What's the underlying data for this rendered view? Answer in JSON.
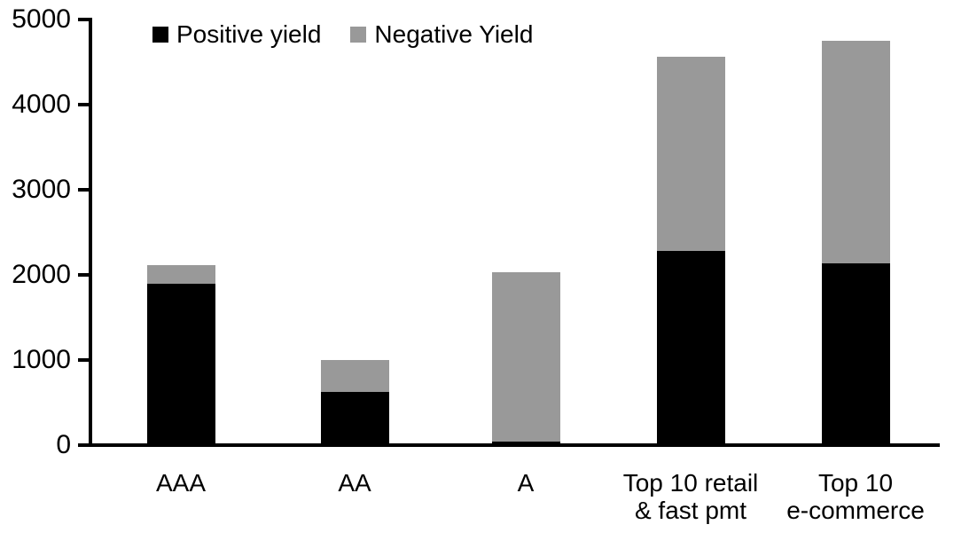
{
  "chart_data": {
    "type": "bar",
    "stacked": true,
    "title": "",
    "xlabel": "",
    "ylabel": "",
    "categories": [
      "AAA",
      "AA",
      "A",
      "Top 10 retail & fast pmt",
      "Top 10 e-commerce"
    ],
    "category_label_lines": [
      [
        "AAA"
      ],
      [
        "AA"
      ],
      [
        "A"
      ],
      [
        "Top 10 retail",
        "& fast pmt"
      ],
      [
        "Top 10",
        "e-commerce"
      ]
    ],
    "series": [
      {
        "name": "Positive yield",
        "color": "#000000",
        "values": [
          1890,
          620,
          40,
          2280,
          2130
        ]
      },
      {
        "name": "Negative Yield",
        "color": "#999999",
        "values": [
          220,
          380,
          1990,
          2280,
          2620
        ]
      }
    ],
    "totals": [
      2110,
      1000,
      2030,
      4560,
      4750
    ],
    "ylim": [
      0,
      5000
    ],
    "yticks": [
      0,
      1000,
      2000,
      3000,
      4000,
      5000
    ],
    "legend_position": "top-left-inside",
    "grid": false,
    "background_color": "#ffffff",
    "axis_color": "#000000"
  }
}
